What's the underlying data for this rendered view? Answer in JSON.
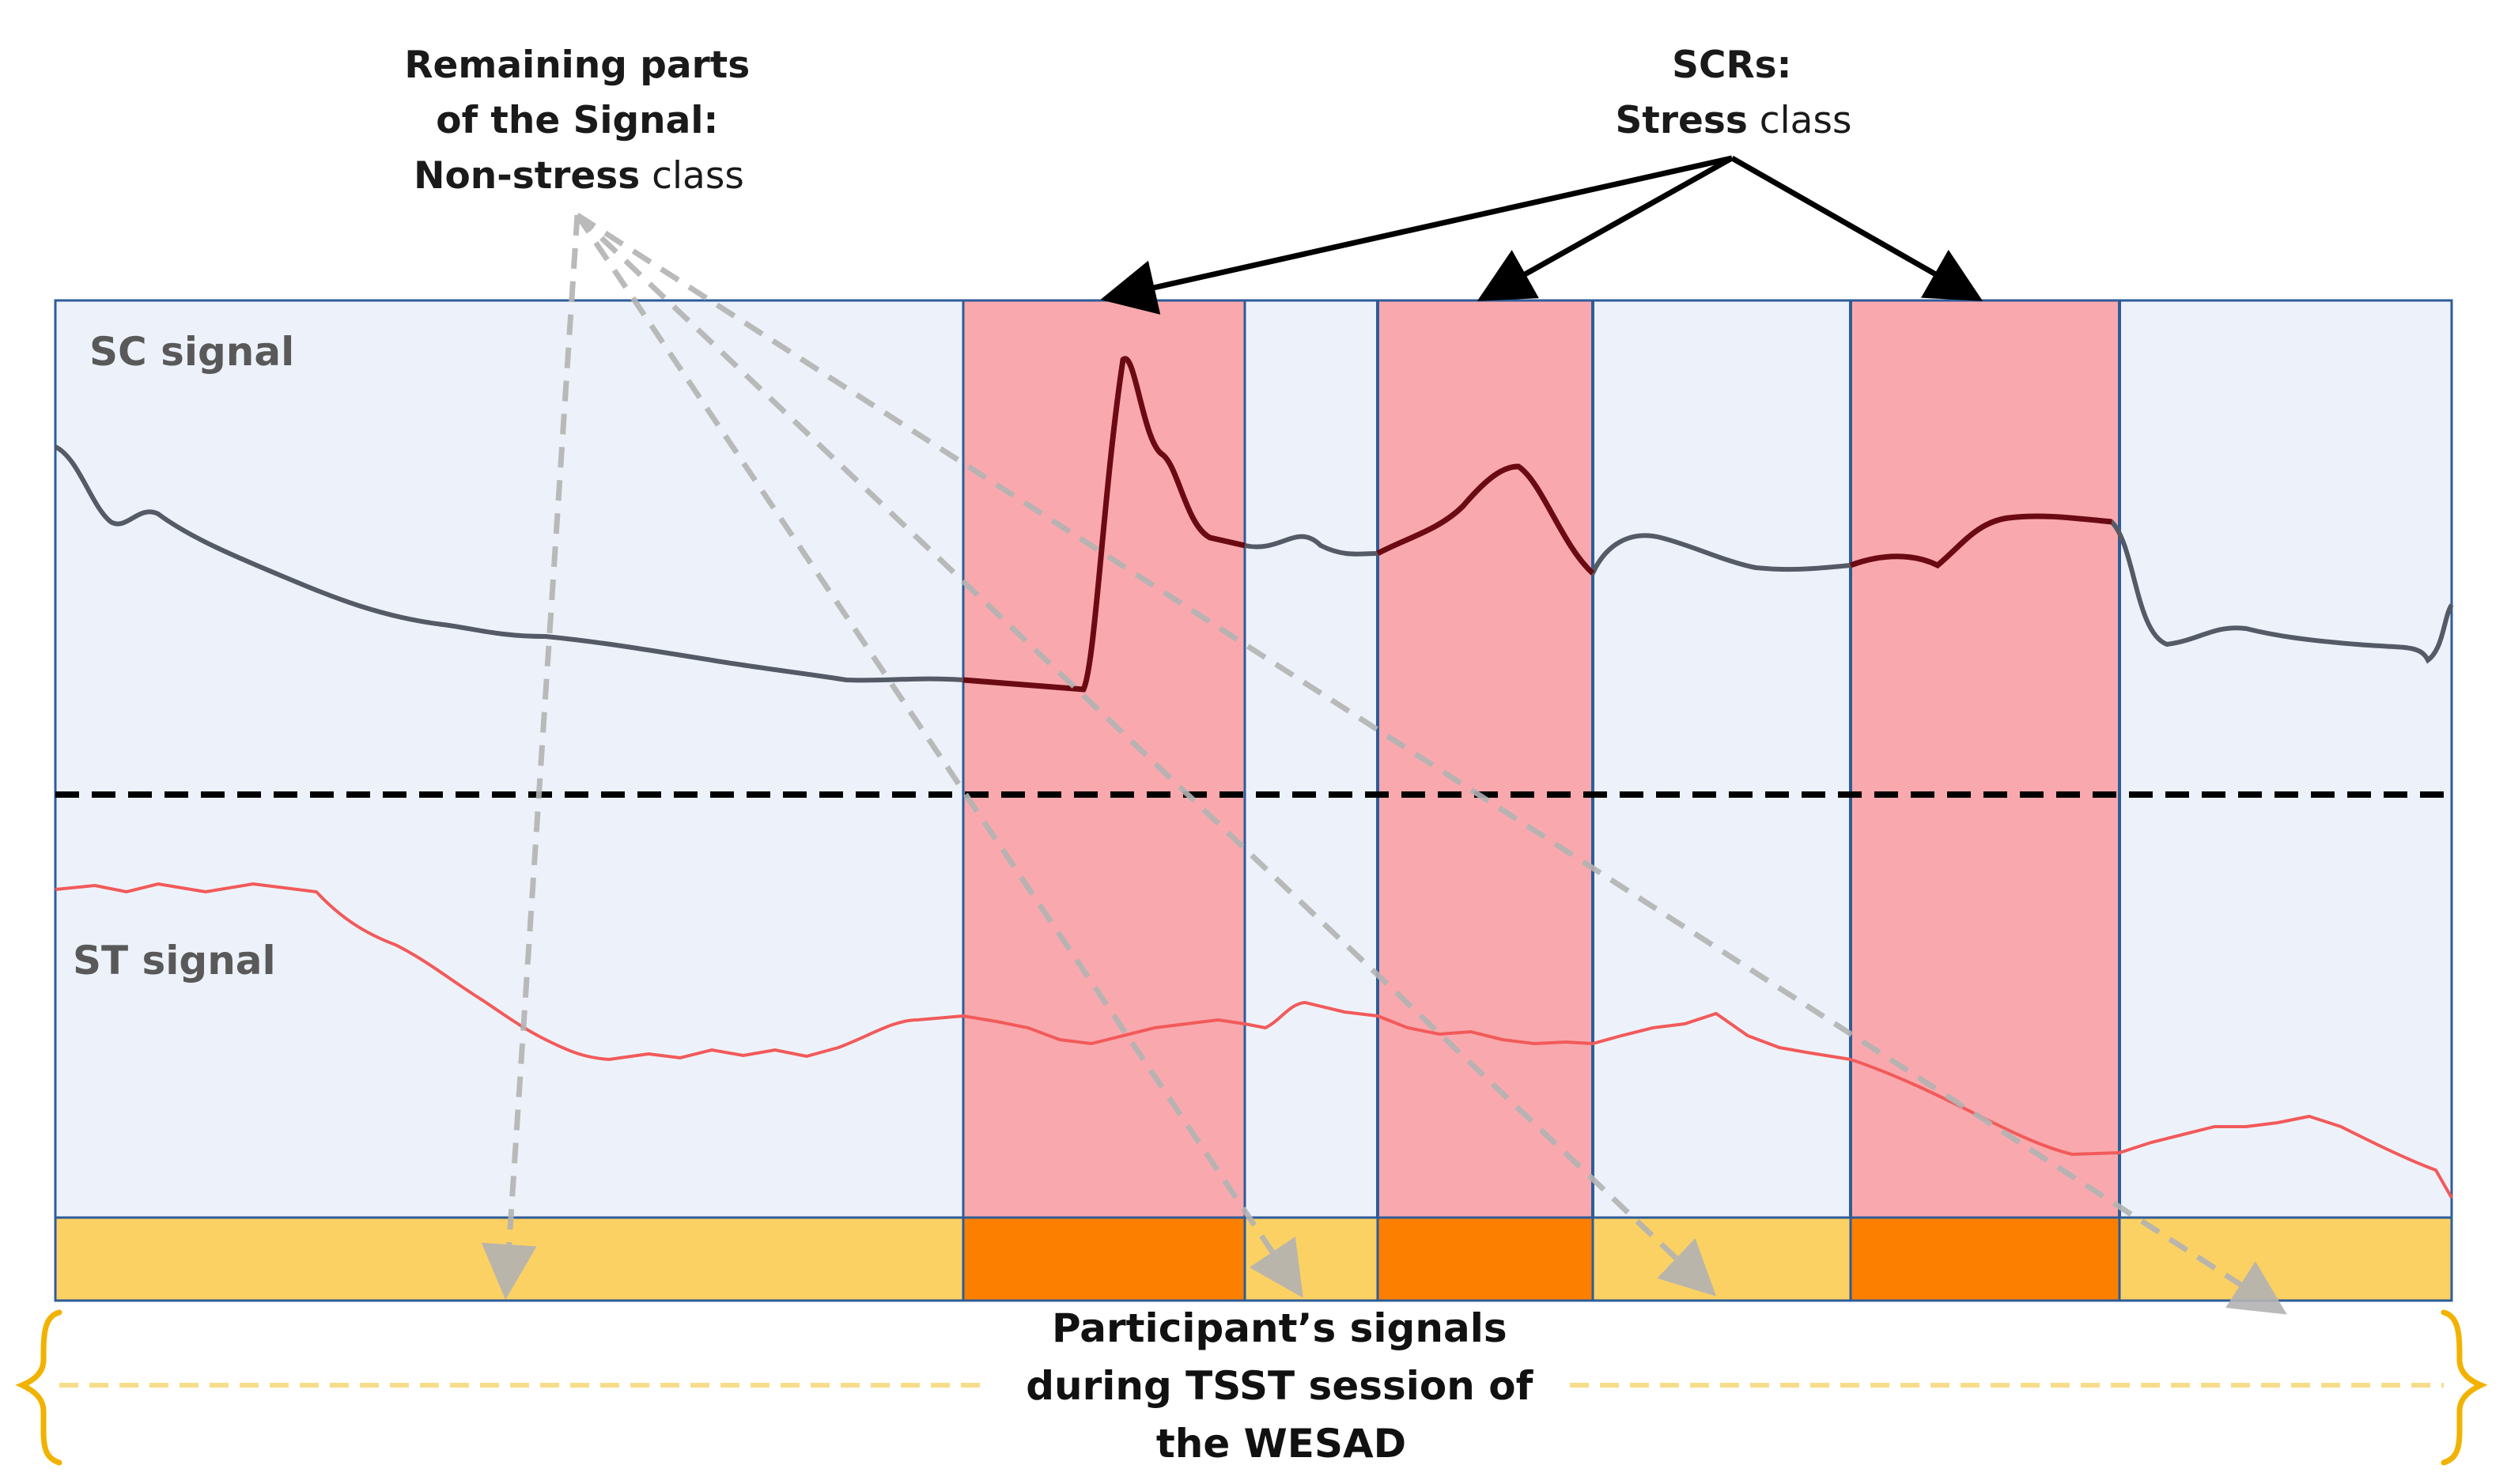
{
  "annotations": {
    "nonstress": {
      "line1": "Remaining parts",
      "line2": "of the Signal:",
      "line3_bold": "Non-stress",
      "line3_rest": " class"
    },
    "stress": {
      "line1": "SCRs:",
      "line2_bold": "Stress",
      "line2_rest": " class"
    }
  },
  "signals": {
    "sc_label": "SC signal",
    "st_label": "ST signal"
  },
  "caption": {
    "line1": "Participant’s signals",
    "line2": "during TSST session of",
    "line3": "the WESAD"
  },
  "colors": {
    "panel_background": "#edf2fa",
    "panel_border": "#2e5c99",
    "stress_window": "#f9a9ad",
    "stress_bar": "#fd7f00",
    "nonstress_bar": "#fbd163",
    "sc_line": "#545a66",
    "sc_line_stress": "#6b0a12",
    "st_line": "#f25a5a",
    "st_line_stress": "#e00000",
    "brace": "#f2b200"
  },
  "icons": {
    "brace": "curly-brace-icon",
    "arrow": "arrow-icon"
  }
}
